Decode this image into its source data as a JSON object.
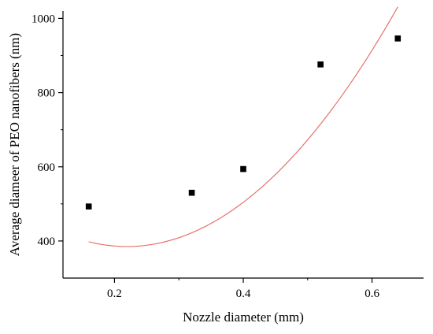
{
  "chart_data": {
    "type": "scatter",
    "title": "",
    "xlabel": "Nozzle diameter (mm)",
    "ylabel": "Average diameer of PEO nanofibers (nm)",
    "xlim": [
      0.12,
      0.68
    ],
    "ylim": [
      300,
      1020
    ],
    "xticks": [
      0.2,
      0.4,
      0.6
    ],
    "xtick_labels": [
      "0.2",
      "0.4",
      "0.6"
    ],
    "yticks": [
      400,
      600,
      800,
      1000
    ],
    "ytick_labels": [
      "400",
      "600",
      "800",
      "1000"
    ],
    "grid": false,
    "legend": "none",
    "series": [
      {
        "type": "scatter",
        "marker": "square",
        "color": "#000000",
        "points": [
          {
            "x": 0.16,
            "y": 493
          },
          {
            "x": 0.32,
            "y": 530
          },
          {
            "x": 0.4,
            "y": 594
          },
          {
            "x": 0.52,
            "y": 876
          },
          {
            "x": 0.64,
            "y": 946
          }
        ]
      },
      {
        "type": "line",
        "color": "#e8706a",
        "fit": "polynomial-2",
        "x_range": [
          0.16,
          0.64
        ],
        "coefficients": [
          560.7,
          -1601.9,
          3652.0
        ]
      }
    ]
  }
}
